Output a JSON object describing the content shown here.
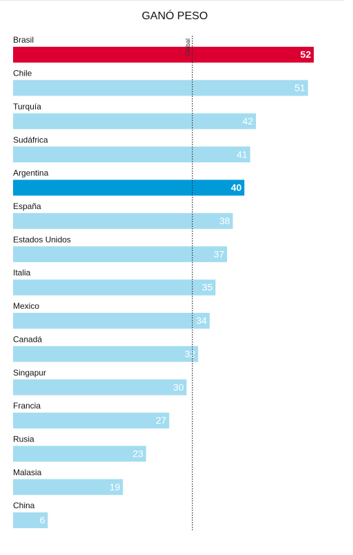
{
  "chart_data": {
    "type": "hbar",
    "title": "GANÓ PESO",
    "categories": [
      "Brasil",
      "Chile",
      "Turquía",
      "Sudáfrica",
      "Argentina",
      "España",
      "Estados Unidos",
      "Italia",
      "Mexico",
      "Canadá",
      "Singapur",
      "Francia",
      "Rusia",
      "Malasia",
      "China"
    ],
    "values": [
      52,
      51,
      42,
      41,
      40,
      38,
      37,
      35,
      34,
      32,
      30,
      27,
      23,
      19,
      6
    ],
    "colors": [
      "#dc0032",
      "#a3dcf0",
      "#a3dcf0",
      "#a3dcf0",
      "#009ad9",
      "#a3dcf0",
      "#a3dcf0",
      "#a3dcf0",
      "#a3dcf0",
      "#a3dcf0",
      "#a3dcf0",
      "#a3dcf0",
      "#a3dcf0",
      "#a3dcf0",
      "#a3dcf0"
    ],
    "xlim": [
      0,
      52
    ],
    "reference": {
      "label": "Global",
      "value": 31
    }
  }
}
